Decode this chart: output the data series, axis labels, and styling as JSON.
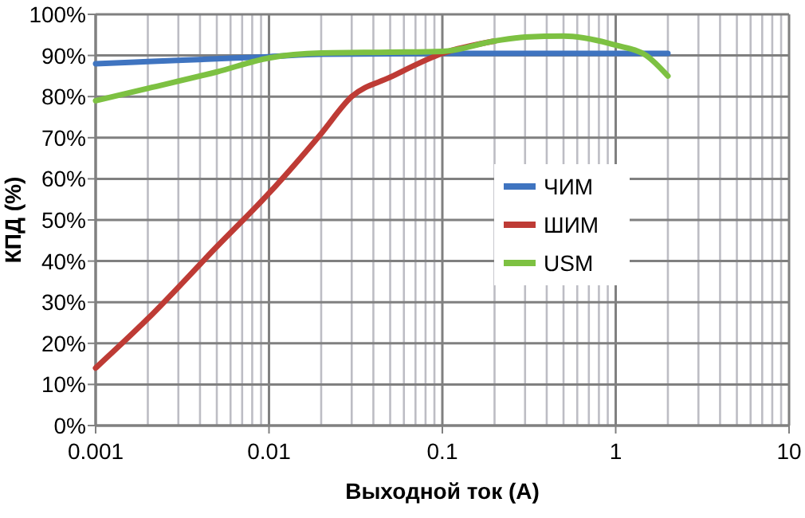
{
  "chart_data": {
    "type": "line",
    "xlabel": "Выходной ток (А)",
    "ylabel": "КПД (%)",
    "log": "x",
    "grid": true,
    "legend": "right",
    "xlim": [
      0.001,
      10
    ],
    "ylim": [
      0,
      100
    ],
    "xticks": [
      0.001,
      0.01,
      0.1,
      1,
      10
    ],
    "yticks": [
      {
        "value": 0,
        "label": "0%"
      },
      {
        "value": 10,
        "label": "10%"
      },
      {
        "value": 20,
        "label": "20%"
      },
      {
        "value": 30,
        "label": "30%"
      },
      {
        "value": 40,
        "label": "40%"
      },
      {
        "value": 50,
        "label": "50%"
      },
      {
        "value": 60,
        "label": "60%"
      },
      {
        "value": 70,
        "label": "70%"
      },
      {
        "value": 80,
        "label": "80%"
      },
      {
        "value": 90,
        "label": "90%"
      },
      {
        "value": 100,
        "label": "100%"
      }
    ],
    "series": [
      {
        "name": "ЧИМ",
        "color": "#3f74c0",
        "x": [
          0.001,
          0.002,
          0.005,
          0.01,
          0.02,
          0.05,
          0.1,
          0.2,
          0.5,
          1,
          2
        ],
        "values": [
          88,
          88.5,
          89.2,
          89.7,
          90.3,
          90.4,
          90.5,
          90.5,
          90.5,
          90.5,
          90.5
        ]
      },
      {
        "name": "ШИМ",
        "color": "#be3b35",
        "x": [
          0.001,
          0.002,
          0.005,
          0.01,
          0.02,
          0.03,
          0.05,
          0.1,
          0.2
        ],
        "values": [
          14,
          26,
          43.5,
          56.5,
          71,
          80,
          84.7,
          90.5,
          93.5
        ]
      },
      {
        "name": "USM",
        "color": "#7dc142",
        "x": [
          0.001,
          0.002,
          0.005,
          0.01,
          0.02,
          0.05,
          0.1,
          0.2,
          0.3,
          0.5,
          1,
          1.5,
          2
        ],
        "values": [
          79,
          82,
          86,
          89.4,
          90.6,
          90.8,
          91,
          93.5,
          94.5,
          94.7,
          92.5,
          90,
          85
        ]
      }
    ]
  }
}
